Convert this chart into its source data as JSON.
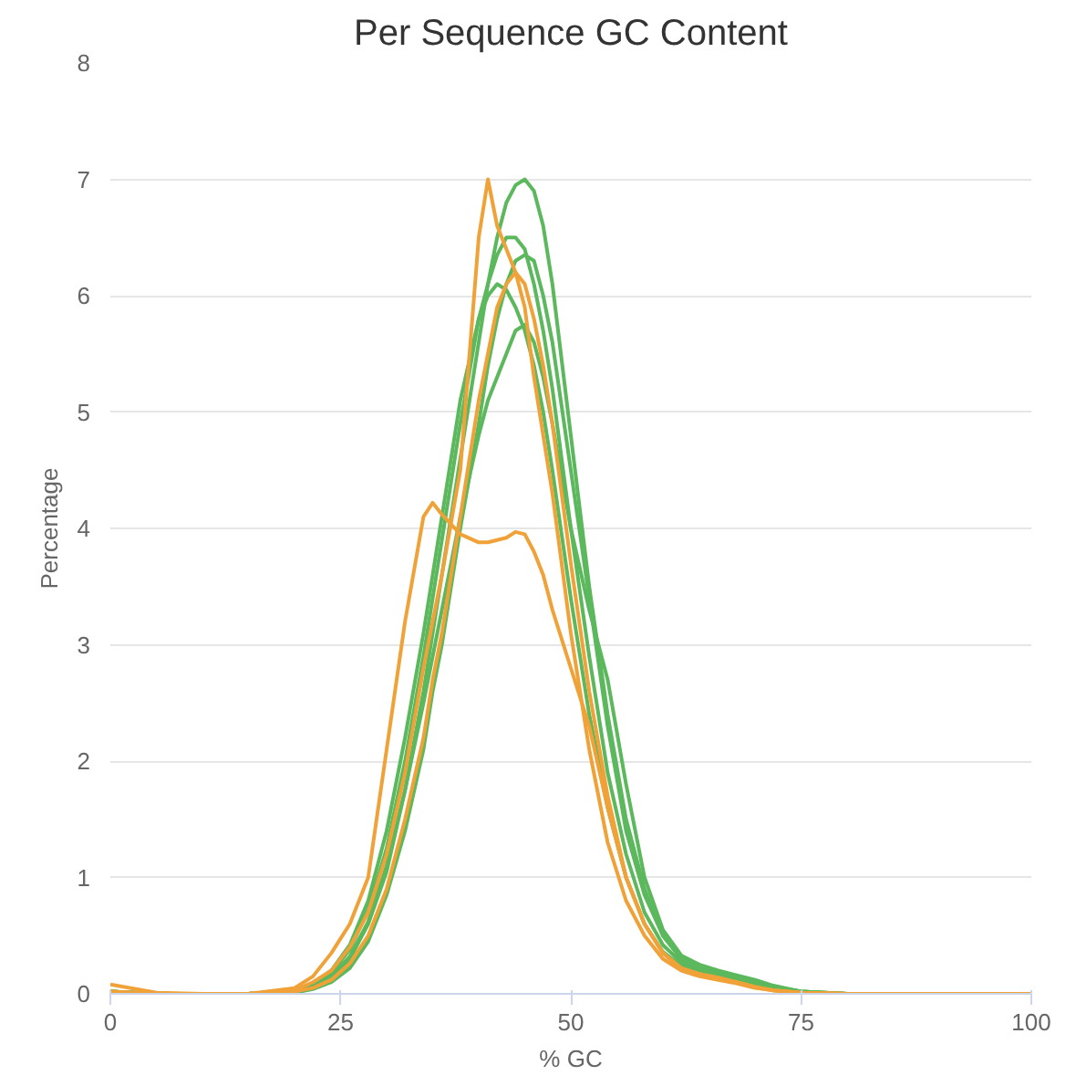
{
  "chart_data": {
    "type": "line",
    "title": "Per Sequence GC Content",
    "xlabel": "% GC",
    "ylabel": "Percentage",
    "x": [
      0,
      5,
      10,
      15,
      20,
      22,
      24,
      26,
      28,
      30,
      32,
      34,
      35,
      36,
      38,
      40,
      41,
      42,
      43,
      44,
      45,
      46,
      47,
      48,
      50,
      52,
      54,
      56,
      58,
      60,
      62,
      64,
      66,
      68,
      70,
      72,
      75,
      80,
      90,
      100
    ],
    "series": [
      {
        "color": "#5cb85c",
        "values": [
          0.02,
          0,
          0,
          0,
          0.02,
          0.06,
          0.14,
          0.3,
          0.6,
          1.05,
          1.75,
          2.6,
          3.1,
          3.6,
          4.6,
          5.6,
          6.1,
          6.5,
          6.8,
          6.95,
          7.0,
          6.9,
          6.6,
          6.1,
          4.8,
          3.5,
          2.4,
          1.5,
          0.9,
          0.5,
          0.3,
          0.22,
          0.18,
          0.14,
          0.1,
          0.06,
          0.02,
          0,
          0,
          0
        ]
      },
      {
        "color": "#5cb85c",
        "values": [
          0.02,
          0,
          0,
          0,
          0.03,
          0.08,
          0.18,
          0.38,
          0.72,
          1.25,
          2.0,
          2.9,
          3.4,
          3.9,
          4.9,
          5.8,
          6.1,
          6.35,
          6.5,
          6.5,
          6.4,
          6.1,
          5.7,
          5.2,
          4.0,
          2.9,
          1.9,
          1.2,
          0.7,
          0.42,
          0.27,
          0.2,
          0.16,
          0.12,
          0.08,
          0.05,
          0.02,
          0,
          0,
          0
        ]
      },
      {
        "color": "#5cb85c",
        "values": [
          0.02,
          0,
          0,
          0,
          0.02,
          0.06,
          0.15,
          0.32,
          0.62,
          1.1,
          1.75,
          2.5,
          2.9,
          3.3,
          4.1,
          4.8,
          5.1,
          5.3,
          5.5,
          5.7,
          5.75,
          5.6,
          5.3,
          4.9,
          4.0,
          3.3,
          2.7,
          1.8,
          1.0,
          0.55,
          0.33,
          0.25,
          0.2,
          0.16,
          0.12,
          0.07,
          0.02,
          0,
          0,
          0
        ]
      },
      {
        "color": "#5cb85c",
        "values": [
          0.02,
          0,
          0,
          0,
          0.01,
          0.04,
          0.1,
          0.22,
          0.45,
          0.85,
          1.4,
          2.1,
          2.6,
          3.0,
          4.0,
          4.9,
          5.4,
          5.8,
          6.1,
          6.3,
          6.35,
          6.3,
          6.0,
          5.6,
          4.5,
          3.4,
          2.3,
          1.4,
          0.85,
          0.5,
          0.3,
          0.22,
          0.18,
          0.14,
          0.1,
          0.06,
          0.02,
          0,
          0,
          0
        ]
      },
      {
        "color": "#5cb85c",
        "values": [
          0.02,
          0,
          0,
          0,
          0.03,
          0.09,
          0.2,
          0.42,
          0.8,
          1.4,
          2.2,
          3.1,
          3.6,
          4.1,
          5.1,
          5.8,
          6.0,
          6.1,
          6.05,
          5.9,
          5.7,
          5.4,
          5.0,
          4.5,
          3.4,
          2.4,
          1.6,
          1.0,
          0.6,
          0.36,
          0.24,
          0.18,
          0.14,
          0.1,
          0.07,
          0.04,
          0.01,
          0,
          0,
          0
        ]
      },
      {
        "color": "#f0a238",
        "values": [
          0.08,
          0.01,
          0,
          0,
          0.05,
          0.15,
          0.35,
          0.6,
          1.0,
          2.1,
          3.2,
          4.1,
          4.22,
          4.12,
          3.95,
          3.88,
          3.88,
          3.9,
          3.92,
          3.97,
          3.95,
          3.8,
          3.6,
          3.3,
          2.8,
          2.3,
          1.6,
          1.0,
          0.6,
          0.35,
          0.22,
          0.17,
          0.14,
          0.1,
          0.06,
          0.03,
          0.01,
          0,
          0,
          0
        ]
      },
      {
        "color": "#f0a238",
        "values": [
          0.02,
          0,
          0,
          0,
          0.03,
          0.1,
          0.2,
          0.4,
          0.7,
          1.2,
          1.9,
          2.8,
          3.2,
          3.6,
          4.5,
          6.5,
          7.0,
          6.6,
          6.4,
          6.2,
          5.9,
          5.3,
          4.8,
          4.3,
          3.1,
          2.1,
          1.3,
          0.8,
          0.5,
          0.3,
          0.2,
          0.15,
          0.12,
          0.09,
          0.05,
          0.03,
          0.01,
          0,
          0,
          0
        ]
      },
      {
        "color": "#f0a238",
        "values": [
          0.02,
          0,
          0,
          0,
          0.02,
          0.05,
          0.12,
          0.26,
          0.5,
          0.9,
          1.5,
          2.2,
          2.7,
          3.1,
          4.1,
          5.1,
          5.5,
          5.9,
          6.1,
          6.2,
          6.1,
          5.8,
          5.4,
          4.9,
          3.7,
          2.6,
          1.7,
          1.0,
          0.6,
          0.35,
          0.22,
          0.17,
          0.13,
          0.1,
          0.06,
          0.03,
          0.01,
          0,
          0,
          0
        ]
      }
    ],
    "xlim": [
      0,
      100
    ],
    "xticks": [
      0,
      25,
      50,
      75,
      100
    ],
    "ylim": [
      0,
      8
    ],
    "yticks": [
      0,
      1,
      2,
      3,
      4,
      5,
      6,
      7,
      8
    ],
    "grid": "y"
  }
}
